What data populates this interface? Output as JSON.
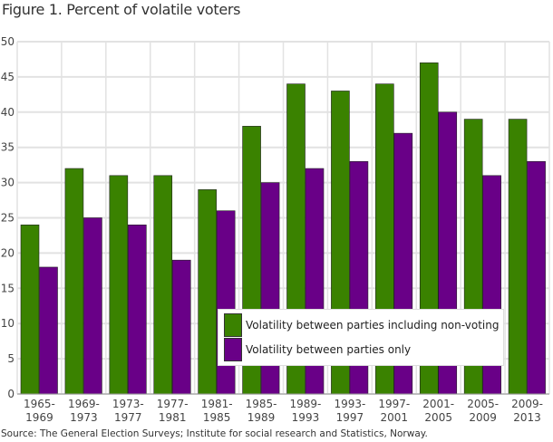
{
  "chart_data": {
    "type": "bar",
    "title": "Figure 1. Percent of volatile voters",
    "source": "Source: The General Election Surveys; Institute for social research and Statistics, Norway.",
    "categories": [
      [
        "1965-",
        "1969"
      ],
      [
        "1969-",
        "1973"
      ],
      [
        "1973-",
        "1977"
      ],
      [
        "1977-",
        "1981"
      ],
      [
        "1981-",
        "1985"
      ],
      [
        "1985-",
        "1989"
      ],
      [
        "1989-",
        "1993"
      ],
      [
        "1993-",
        "1997"
      ],
      [
        "1997-",
        "2001"
      ],
      [
        "2001-",
        "2005"
      ],
      [
        "2005-",
        "2009"
      ],
      [
        "2009-",
        "2013"
      ]
    ],
    "series": [
      {
        "name": "Volatility between parties including non-voting",
        "color": "#3a8200",
        "values": [
          24,
          32,
          31,
          31,
          29,
          38,
          44,
          43,
          44,
          47,
          39,
          39
        ]
      },
      {
        "name": "Volatility between parties only",
        "color": "#690087",
        "values": [
          18,
          25,
          24,
          19,
          26,
          30,
          32,
          33,
          37,
          40,
          31,
          33
        ]
      }
    ],
    "ylim": [
      0,
      50
    ],
    "yticks": [
      0,
      5,
      10,
      15,
      20,
      25,
      30,
      35,
      40,
      45,
      50
    ],
    "grid": true,
    "legend_position": "bottom-right"
  }
}
